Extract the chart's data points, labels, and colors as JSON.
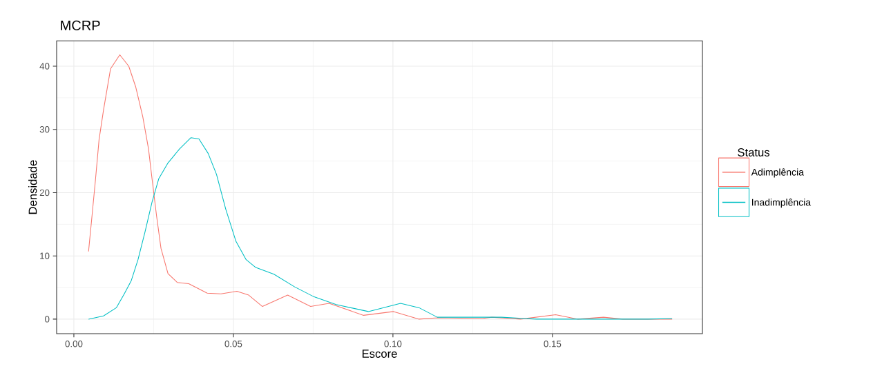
{
  "chart_data": {
    "type": "line",
    "title": "MCRP",
    "xlabel": "Escore",
    "ylabel": "Densidade",
    "legend_title": "Status",
    "xlim": [
      -0.0054,
      0.197
    ],
    "ylim": [
      -2.3,
      44.0
    ],
    "xticks": [
      {
        "value": 0,
        "label": "0.00"
      },
      0.05,
      {
        "value": 0.1,
        "label": "0.10"
      },
      0.15
    ],
    "yticks": [
      0,
      10,
      20,
      30,
      40
    ],
    "grid": true,
    "legend": "right",
    "marker": "none",
    "line_style": "solid",
    "series": [
      {
        "name": "Adimplência",
        "color": "#f8766d",
        "x": [
          0.0046,
          0.0057,
          0.0068,
          0.0079,
          0.0093,
          0.0115,
          0.0144,
          0.0172,
          0.0194,
          0.0216,
          0.0234,
          0.0245,
          0.0259,
          0.0273,
          0.0295,
          0.0324,
          0.036,
          0.0418,
          0.0461,
          0.0511,
          0.0548,
          0.0591,
          0.067,
          0.0742,
          0.08,
          0.0908,
          0.1002,
          0.1082,
          0.114,
          0.128,
          0.131,
          0.14,
          0.151,
          0.158,
          0.166,
          0.172,
          0.1875
        ],
        "values": [
          10.7,
          16.4,
          22.2,
          28.4,
          33.1,
          39.6,
          41.8,
          40.0,
          36.7,
          32.0,
          26.9,
          22.2,
          16.4,
          11.2,
          7.2,
          5.8,
          5.6,
          4.1,
          4.0,
          4.4,
          3.8,
          2.0,
          3.8,
          2.0,
          2.5,
          0.6,
          1.2,
          0.0,
          0.2,
          0.1,
          0.3,
          0.0,
          0.7,
          0.0,
          0.3,
          0.0,
          0.0
        ]
      },
      {
        "name": "Inadimplência",
        "color": "#00bfc4",
        "x": [
          0.0046,
          0.0093,
          0.0133,
          0.0158,
          0.018,
          0.0201,
          0.0223,
          0.0245,
          0.0266,
          0.0295,
          0.0331,
          0.0367,
          0.0392,
          0.0421,
          0.0447,
          0.0476,
          0.0508,
          0.054,
          0.0569,
          0.0627,
          0.0692,
          0.075,
          0.0822,
          0.0923,
          0.1024,
          0.1082,
          0.1139,
          0.121,
          0.134,
          0.145,
          0.18,
          0.1875
        ],
        "values": [
          0.0,
          0.5,
          1.8,
          4.0,
          6.1,
          9.4,
          13.8,
          18.5,
          22.2,
          24.7,
          26.9,
          28.7,
          28.5,
          26.2,
          22.9,
          17.4,
          12.3,
          9.4,
          8.2,
          7.1,
          5.1,
          3.6,
          2.3,
          1.2,
          2.5,
          1.8,
          0.3,
          0.3,
          0.3,
          0.0,
          0.0,
          0.1
        ]
      }
    ]
  }
}
